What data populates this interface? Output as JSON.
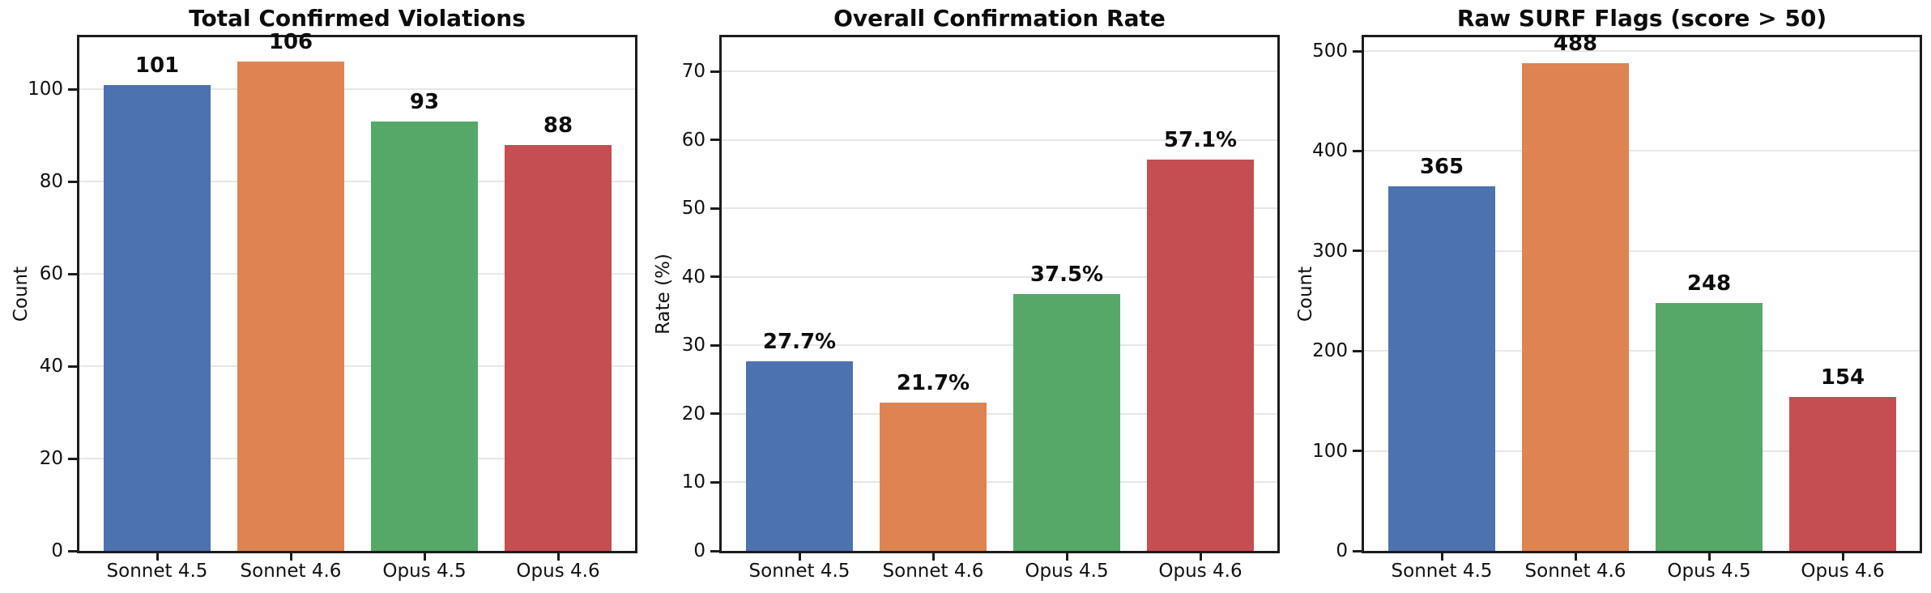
{
  "figure": {
    "background": "#ffffff",
    "bar_colors": [
      "#4C72B0",
      "#DD8452",
      "#55A868",
      "#C44E52"
    ],
    "text_color": "#111111",
    "spine_color": "#1c1c1c",
    "grid_color": "#e6e6e6"
  },
  "chart_data": [
    {
      "type": "bar",
      "title": "Total Confirmed Violations",
      "xlabel": "",
      "ylabel": "Count",
      "categories": [
        "Sonnet 4.5",
        "Sonnet 4.6",
        "Opus 4.5",
        "Opus 4.6"
      ],
      "values": [
        101,
        106,
        93,
        88
      ],
      "value_labels": [
        "101",
        "106",
        "93",
        "88"
      ],
      "yticks": [
        0,
        20,
        40,
        60,
        80,
        100
      ],
      "ylim": [
        0,
        111.3
      ],
      "grid": "horizontal",
      "legend_position": "none"
    },
    {
      "type": "bar",
      "title": "Overall Confirmation Rate",
      "xlabel": "",
      "ylabel": "Rate (%)",
      "categories": [
        "Sonnet 4.5",
        "Sonnet 4.6",
        "Opus 4.5",
        "Opus 4.6"
      ],
      "values": [
        27.7,
        21.7,
        37.5,
        57.1
      ],
      "value_labels": [
        "27.7%",
        "21.7%",
        "37.5%",
        "57.1%"
      ],
      "yticks": [
        0,
        10,
        20,
        30,
        40,
        50,
        60,
        70
      ],
      "ylim": [
        0,
        75
      ],
      "grid": "horizontal",
      "legend_position": "none"
    },
    {
      "type": "bar",
      "title": "Raw SURF Flags (score > 50)",
      "xlabel": "",
      "ylabel": "Count",
      "categories": [
        "Sonnet 4.5",
        "Sonnet 4.6",
        "Opus 4.5",
        "Opus 4.6"
      ],
      "values": [
        365,
        488,
        248,
        154
      ],
      "value_labels": [
        "365",
        "488",
        "248",
        "154"
      ],
      "yticks": [
        0,
        100,
        200,
        300,
        400,
        500
      ],
      "ylim": [
        0,
        513.8
      ],
      "grid": "horizontal",
      "legend_position": "none"
    }
  ]
}
